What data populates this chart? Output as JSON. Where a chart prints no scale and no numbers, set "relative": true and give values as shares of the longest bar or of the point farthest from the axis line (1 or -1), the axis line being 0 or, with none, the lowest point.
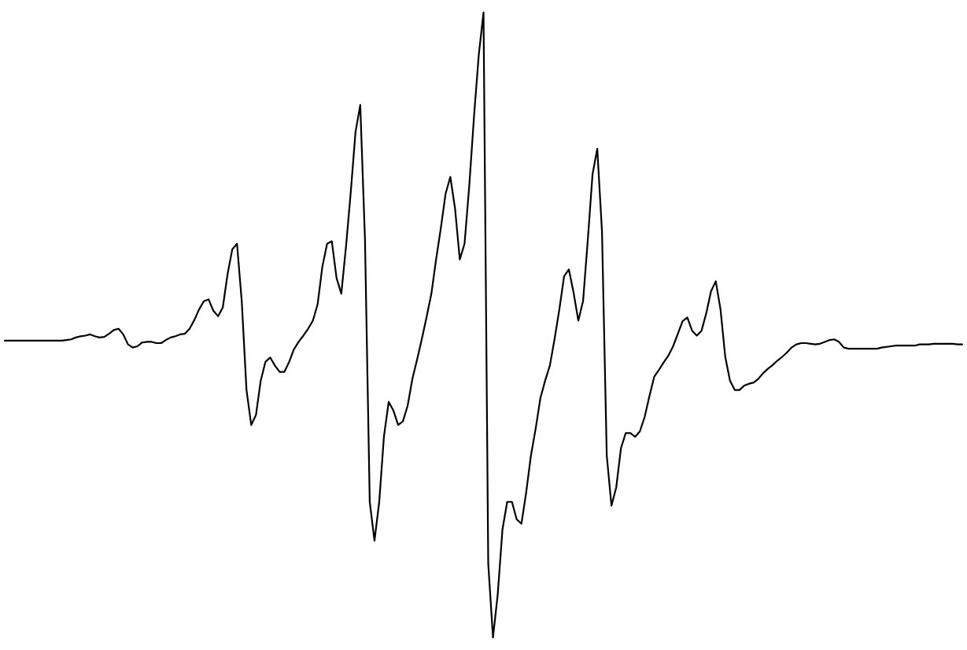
{
  "chart_data": {
    "type": "line",
    "relative": true,
    "color": "#000000",
    "line_style": "solid",
    "categories": [
      null,
      null,
      null,
      null,
      null,
      null,
      null,
      null,
      null,
      null,
      null,
      null,
      null,
      null,
      null,
      null,
      null,
      null,
      null,
      null,
      null,
      null,
      null,
      null,
      null,
      null,
      null,
      null,
      null,
      null,
      null,
      null,
      null,
      null,
      null,
      null,
      null,
      null,
      null,
      null,
      null,
      null,
      null,
      null,
      null,
      null,
      null,
      null,
      null,
      null,
      null,
      null,
      null,
      null,
      null,
      null,
      null,
      null,
      null,
      null,
      null,
      null,
      null,
      null,
      null,
      null,
      null,
      null,
      null,
      null,
      null,
      null,
      null,
      null,
      null,
      null,
      null,
      null,
      null,
      null,
      null,
      null,
      null,
      null,
      null,
      null,
      null,
      null,
      null,
      null,
      null,
      null,
      null,
      null,
      null,
      null,
      null,
      null,
      null,
      null,
      null,
      null,
      null,
      null,
      null,
      null,
      null,
      null,
      null,
      null,
      null,
      null,
      null,
      null,
      null,
      null,
      null,
      null,
      null,
      null,
      null,
      null,
      null,
      null,
      null,
      null,
      null,
      null,
      null,
      null,
      null,
      null,
      null,
      null,
      null,
      null,
      null,
      null,
      null,
      null,
      null,
      null,
      null,
      null,
      null,
      null,
      null,
      null,
      null,
      null,
      null,
      null,
      null,
      null,
      null,
      null,
      null,
      null,
      null,
      null,
      null,
      null,
      null,
      null,
      null,
      null,
      null,
      null,
      null,
      null,
      null,
      null,
      null,
      null,
      null,
      null,
      null,
      null,
      null,
      null,
      null,
      null,
      null,
      null,
      null,
      null,
      null,
      null,
      null,
      null,
      null,
      null,
      null,
      null,
      null,
      null,
      null,
      null,
      null,
      null,
      null,
      null,
      null
    ],
    "values": [
      0.475,
      0.475,
      0.475,
      0.475,
      0.475,
      0.475,
      0.475,
      0.475,
      0.475,
      0.475,
      0.475,
      0.475,
      0.475,
      0.476,
      0.477,
      0.48,
      0.482,
      0.483,
      0.485,
      0.482,
      0.48,
      0.481,
      0.486,
      0.492,
      0.494,
      0.485,
      0.469,
      0.464,
      0.466,
      0.472,
      0.473,
      0.473,
      0.471,
      0.471,
      0.476,
      0.48,
      0.482,
      0.485,
      0.486,
      0.494,
      0.508,
      0.525,
      0.538,
      0.541,
      0.523,
      0.514,
      0.528,
      0.581,
      0.621,
      0.63,
      0.538,
      0.396,
      0.34,
      0.356,
      0.411,
      0.441,
      0.448,
      0.435,
      0.425,
      0.425,
      0.441,
      0.461,
      0.473,
      0.483,
      0.494,
      0.507,
      0.533,
      0.593,
      0.63,
      0.634,
      0.575,
      0.55,
      0.626,
      0.713,
      0.809,
      0.852,
      0.636,
      0.217,
      0.155,
      0.217,
      0.322,
      0.377,
      0.363,
      0.34,
      0.346,
      0.371,
      0.414,
      0.445,
      0.478,
      0.513,
      0.55,
      0.605,
      0.655,
      0.71,
      0.737,
      0.686,
      0.605,
      0.63,
      0.723,
      0.834,
      0.932,
      1,
      0.118,
      0,
      0.069,
      0.173,
      0.217,
      0.217,
      0.189,
      0.182,
      0.232,
      0.291,
      0.334,
      0.383,
      0.411,
      0.435,
      0.478,
      0.525,
      0.578,
      0.589,
      0.552,
      0.507,
      0.538,
      0.636,
      0.741,
      0.782,
      0.649,
      0.291,
      0.211,
      0.24,
      0.303,
      0.327,
      0.327,
      0.321,
      0.33,
      0.353,
      0.386,
      0.417,
      0.428,
      0.44,
      0.451,
      0.466,
      0.486,
      0.506,
      0.512,
      0.491,
      0.483,
      0.491,
      0.519,
      0.554,
      0.57,
      0.525,
      0.449,
      0.411,
      0.396,
      0.396,
      0.403,
      0.406,
      0.408,
      0.414,
      0.423,
      0.43,
      0.436,
      0.443,
      0.449,
      0.456,
      0.464,
      0.469,
      0.471,
      0.471,
      0.47,
      0.469,
      0.47,
      0.473,
      0.476,
      0.477,
      0.473,
      0.464,
      0.462,
      0.462,
      0.462,
      0.462,
      0.462,
      0.462,
      0.462,
      0.464,
      0.465,
      0.466,
      0.467,
      0.467,
      0.467,
      0.467,
      0.467,
      0.469,
      0.469,
      0.469,
      0.47,
      0.47,
      0.47,
      0.47,
      0.47,
      0.469,
      0.469
    ]
  }
}
